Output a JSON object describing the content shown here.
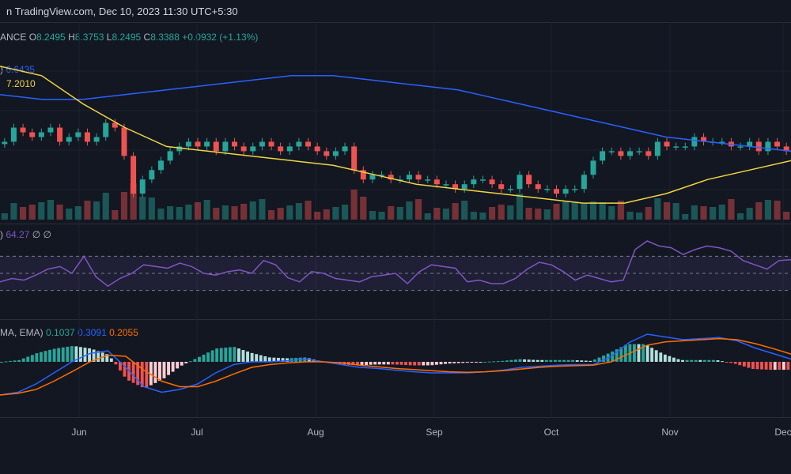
{
  "header": {
    "source": "n TradingView.com, Dec 10, 2023 11:30 UTC+5:30"
  },
  "ohlc": {
    "prefix": "ANCE",
    "open_label": "O",
    "open": "8.2495",
    "high_label": "H",
    "high": "8.3753",
    "low_label": "L",
    "low": "8.2495",
    "close_label": "C",
    "close": "8.3388",
    "change": "+0.0932 (+1.13%)"
  },
  "ma_legend": {
    "ma1_label": ")",
    "ma1_value": "6.6435",
    "ma1_color": "#2962ff",
    "ma2_value": "7.2010",
    "ma2_color": "#f0d541"
  },
  "rsi_legend": {
    "label": ")",
    "value": "64.27",
    "extra1": "∅",
    "extra2": "∅",
    "color": "#7e57c2"
  },
  "macd_legend": {
    "label": "MA, EMA)",
    "hist": "0.1037",
    "macd": "0.3091",
    "signal": "0.2055",
    "hist_color": "#26a69a",
    "macd_color": "#2962ff",
    "signal_color": "#ff6d00"
  },
  "colors": {
    "up": "#26a69a",
    "down": "#ef5350",
    "bg": "#131722",
    "grid": "#1e222d"
  },
  "chart_data": {
    "type": "line",
    "x_axis_labels": [
      {
        "label": "Jun",
        "x": 100
      },
      {
        "label": "Jul",
        "x": 249
      },
      {
        "label": "Aug",
        "x": 399
      },
      {
        "label": "Sep",
        "x": 549
      },
      {
        "label": "Oct",
        "x": 697
      },
      {
        "label": "Nov",
        "x": 847
      },
      {
        "label": "Dec",
        "x": 990
      }
    ],
    "price_close": [
      7.6,
      7.9,
      7.8,
      7.7,
      7.8,
      7.9,
      7.6,
      7.7,
      7.8,
      7.6,
      7.7,
      8.0,
      7.9,
      7.3,
      6.5,
      6.8,
      7.0,
      7.2,
      7.4,
      7.5,
      7.6,
      7.5,
      7.6,
      7.4,
      7.6,
      7.5,
      7.4,
      7.5,
      7.6,
      7.5,
      7.4,
      7.5,
      7.6,
      7.5,
      7.4,
      7.3,
      7.4,
      7.5,
      7.0,
      6.8,
      6.9,
      6.9,
      6.8,
      6.8,
      6.9,
      6.8,
      6.8,
      6.7,
      6.7,
      6.6,
      6.7,
      6.8,
      6.8,
      6.7,
      6.6,
      6.6,
      6.9,
      6.7,
      6.6,
      6.6,
      6.5,
      6.6,
      6.6,
      6.9,
      7.2,
      7.4,
      7.4,
      7.3,
      7.4,
      7.4,
      7.3,
      7.6,
      7.5,
      7.5,
      7.5,
      7.7,
      7.6,
      7.6,
      7.6,
      7.5,
      7.5,
      7.6,
      7.4,
      7.6,
      7.5,
      7.4
    ],
    "ma_slow_blue": [
      8.6,
      8.5,
      8.5,
      8.6,
      8.7,
      8.8,
      8.9,
      9.0,
      9.0,
      8.9,
      8.8,
      8.7,
      8.5,
      8.3,
      8.1,
      7.9,
      7.7,
      7.6,
      7.5,
      7.4
    ],
    "ma_fast_yellow": [
      9.2,
      9.0,
      8.4,
      7.9,
      7.5,
      7.4,
      7.3,
      7.2,
      7.1,
      6.9,
      6.7,
      6.6,
      6.5,
      6.4,
      6.3,
      6.3,
      6.5,
      6.8,
      7.0,
      7.2
    ],
    "rsi": [
      40,
      44,
      42,
      48,
      55,
      58,
      50,
      70,
      46,
      35,
      44,
      50,
      60,
      58,
      56,
      62,
      58,
      50,
      48,
      52,
      54,
      50,
      65,
      60,
      45,
      40,
      52,
      50,
      44,
      42,
      40,
      46,
      48,
      50,
      38,
      52,
      60,
      58,
      56,
      40,
      42,
      38,
      38,
      44,
      55,
      63,
      60,
      52,
      42,
      48,
      44,
      40,
      42,
      78,
      88,
      82,
      80,
      72,
      78,
      82,
      80,
      76,
      65,
      60,
      55,
      65,
      66
    ],
    "rsi_levels": [
      70,
      50,
      30
    ],
    "macd_line": [
      -0.6,
      -0.55,
      -0.4,
      -0.2,
      0.0,
      0.15,
      0.2,
      -0.1,
      -0.45,
      -0.55,
      -0.5,
      -0.4,
      -0.2,
      -0.05,
      0.0,
      0.0,
      0.02,
      0.05,
      0.0,
      -0.05,
      -0.1,
      -0.12,
      -0.15,
      -0.18,
      -0.2,
      -0.2,
      -0.2,
      -0.18,
      -0.15,
      -0.1,
      -0.08,
      -0.06,
      -0.05,
      -0.05,
      0.1,
      0.35,
      0.5,
      0.45,
      0.4,
      0.42,
      0.44,
      0.38,
      0.25,
      0.15,
      0.05
    ],
    "macd_signal": [
      -0.6,
      -0.57,
      -0.5,
      -0.35,
      -0.18,
      0.0,
      0.12,
      0.1,
      -0.15,
      -0.35,
      -0.45,
      -0.45,
      -0.35,
      -0.22,
      -0.1,
      -0.05,
      -0.02,
      0.0,
      0.0,
      -0.02,
      -0.06,
      -0.09,
      -0.12,
      -0.14,
      -0.16,
      -0.18,
      -0.19,
      -0.18,
      -0.16,
      -0.13,
      -0.1,
      -0.08,
      -0.07,
      -0.06,
      0.0,
      0.15,
      0.3,
      0.36,
      0.38,
      0.4,
      0.42,
      0.4,
      0.33,
      0.24,
      0.14
    ],
    "ylabel": "",
    "xlabel": ""
  }
}
